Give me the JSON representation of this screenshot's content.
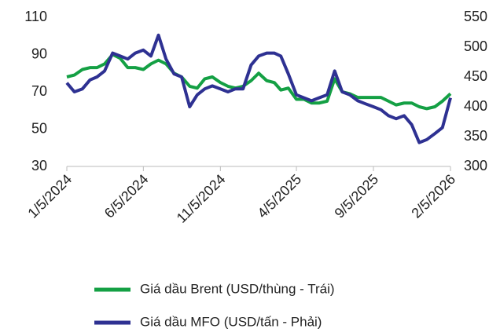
{
  "chart_data": {
    "type": "line",
    "x": [
      "2024-01-05",
      "2024-01-20",
      "2024-02-05",
      "2024-02-20",
      "2024-03-05",
      "2024-03-20",
      "2024-04-05",
      "2024-04-20",
      "2024-05-05",
      "2024-05-20",
      "2024-06-05",
      "2024-06-20",
      "2024-07-05",
      "2024-07-20",
      "2024-08-05",
      "2024-08-20",
      "2024-09-05",
      "2024-09-20",
      "2024-10-05",
      "2024-10-20",
      "2024-11-05",
      "2024-11-20",
      "2024-12-05",
      "2024-12-20",
      "2025-01-05",
      "2025-01-20",
      "2025-02-05",
      "2025-02-20",
      "2025-03-05",
      "2025-03-20",
      "2025-04-05",
      "2025-04-20",
      "2025-05-05",
      "2025-05-20",
      "2025-06-05",
      "2025-06-20",
      "2025-07-05",
      "2025-07-20",
      "2025-08-05",
      "2025-08-20",
      "2025-09-05",
      "2025-09-20",
      "2025-10-05",
      "2025-10-20",
      "2025-11-05",
      "2025-11-20",
      "2025-12-05",
      "2025-12-20",
      "2026-01-05",
      "2026-01-20",
      "2026-02-05"
    ],
    "series": [
      {
        "name": "Giá dầu Brent (USD/thùng - Trái)",
        "color": "#14a044",
        "axis": "y",
        "values": [
          78,
          79,
          82,
          83,
          83,
          85,
          90,
          88,
          83,
          83,
          82,
          85,
          87,
          85,
          80,
          78,
          73,
          72,
          77,
          78,
          75,
          73,
          72,
          73,
          76,
          80,
          76,
          75,
          71,
          72,
          66,
          66,
          64,
          64,
          65,
          77,
          70,
          69,
          67,
          67,
          67,
          67,
          65,
          63,
          64,
          64,
          62,
          61,
          62,
          65,
          69
        ]
      },
      {
        "name": "Giá dầu MFO (USD/tấn - Phải)",
        "color": "#2e3192",
        "axis": "y2",
        "values": [
          440,
          425,
          430,
          445,
          450,
          460,
          490,
          485,
          480,
          490,
          495,
          485,
          520,
          480,
          455,
          450,
          400,
          420,
          430,
          435,
          430,
          425,
          430,
          430,
          470,
          485,
          490,
          490,
          485,
          455,
          420,
          415,
          410,
          415,
          420,
          460,
          425,
          420,
          410,
          405,
          400,
          395,
          385,
          380,
          385,
          370,
          340,
          345,
          355,
          365,
          415
        ]
      }
    ],
    "xlim": [
      "2024-01-05",
      "2026-02-05"
    ],
    "xticks": [
      {
        "value": "2024-01-05",
        "label": "1/5/2024"
      },
      {
        "value": "2024-06-05",
        "label": "6/5/2024"
      },
      {
        "value": "2024-11-05",
        "label": "11/5/2024"
      },
      {
        "value": "2025-04-05",
        "label": "4/5/2025"
      },
      {
        "value": "2025-09-05",
        "label": "9/5/2025"
      },
      {
        "value": "2026-02-05",
        "label": "2/5/2026"
      }
    ],
    "ylim": [
      30,
      110
    ],
    "yticks": [
      30,
      50,
      70,
      90,
      110
    ],
    "y2lim": [
      300,
      550
    ],
    "y2ticks": [
      300,
      350,
      400,
      450,
      500,
      550
    ],
    "grid": false
  }
}
